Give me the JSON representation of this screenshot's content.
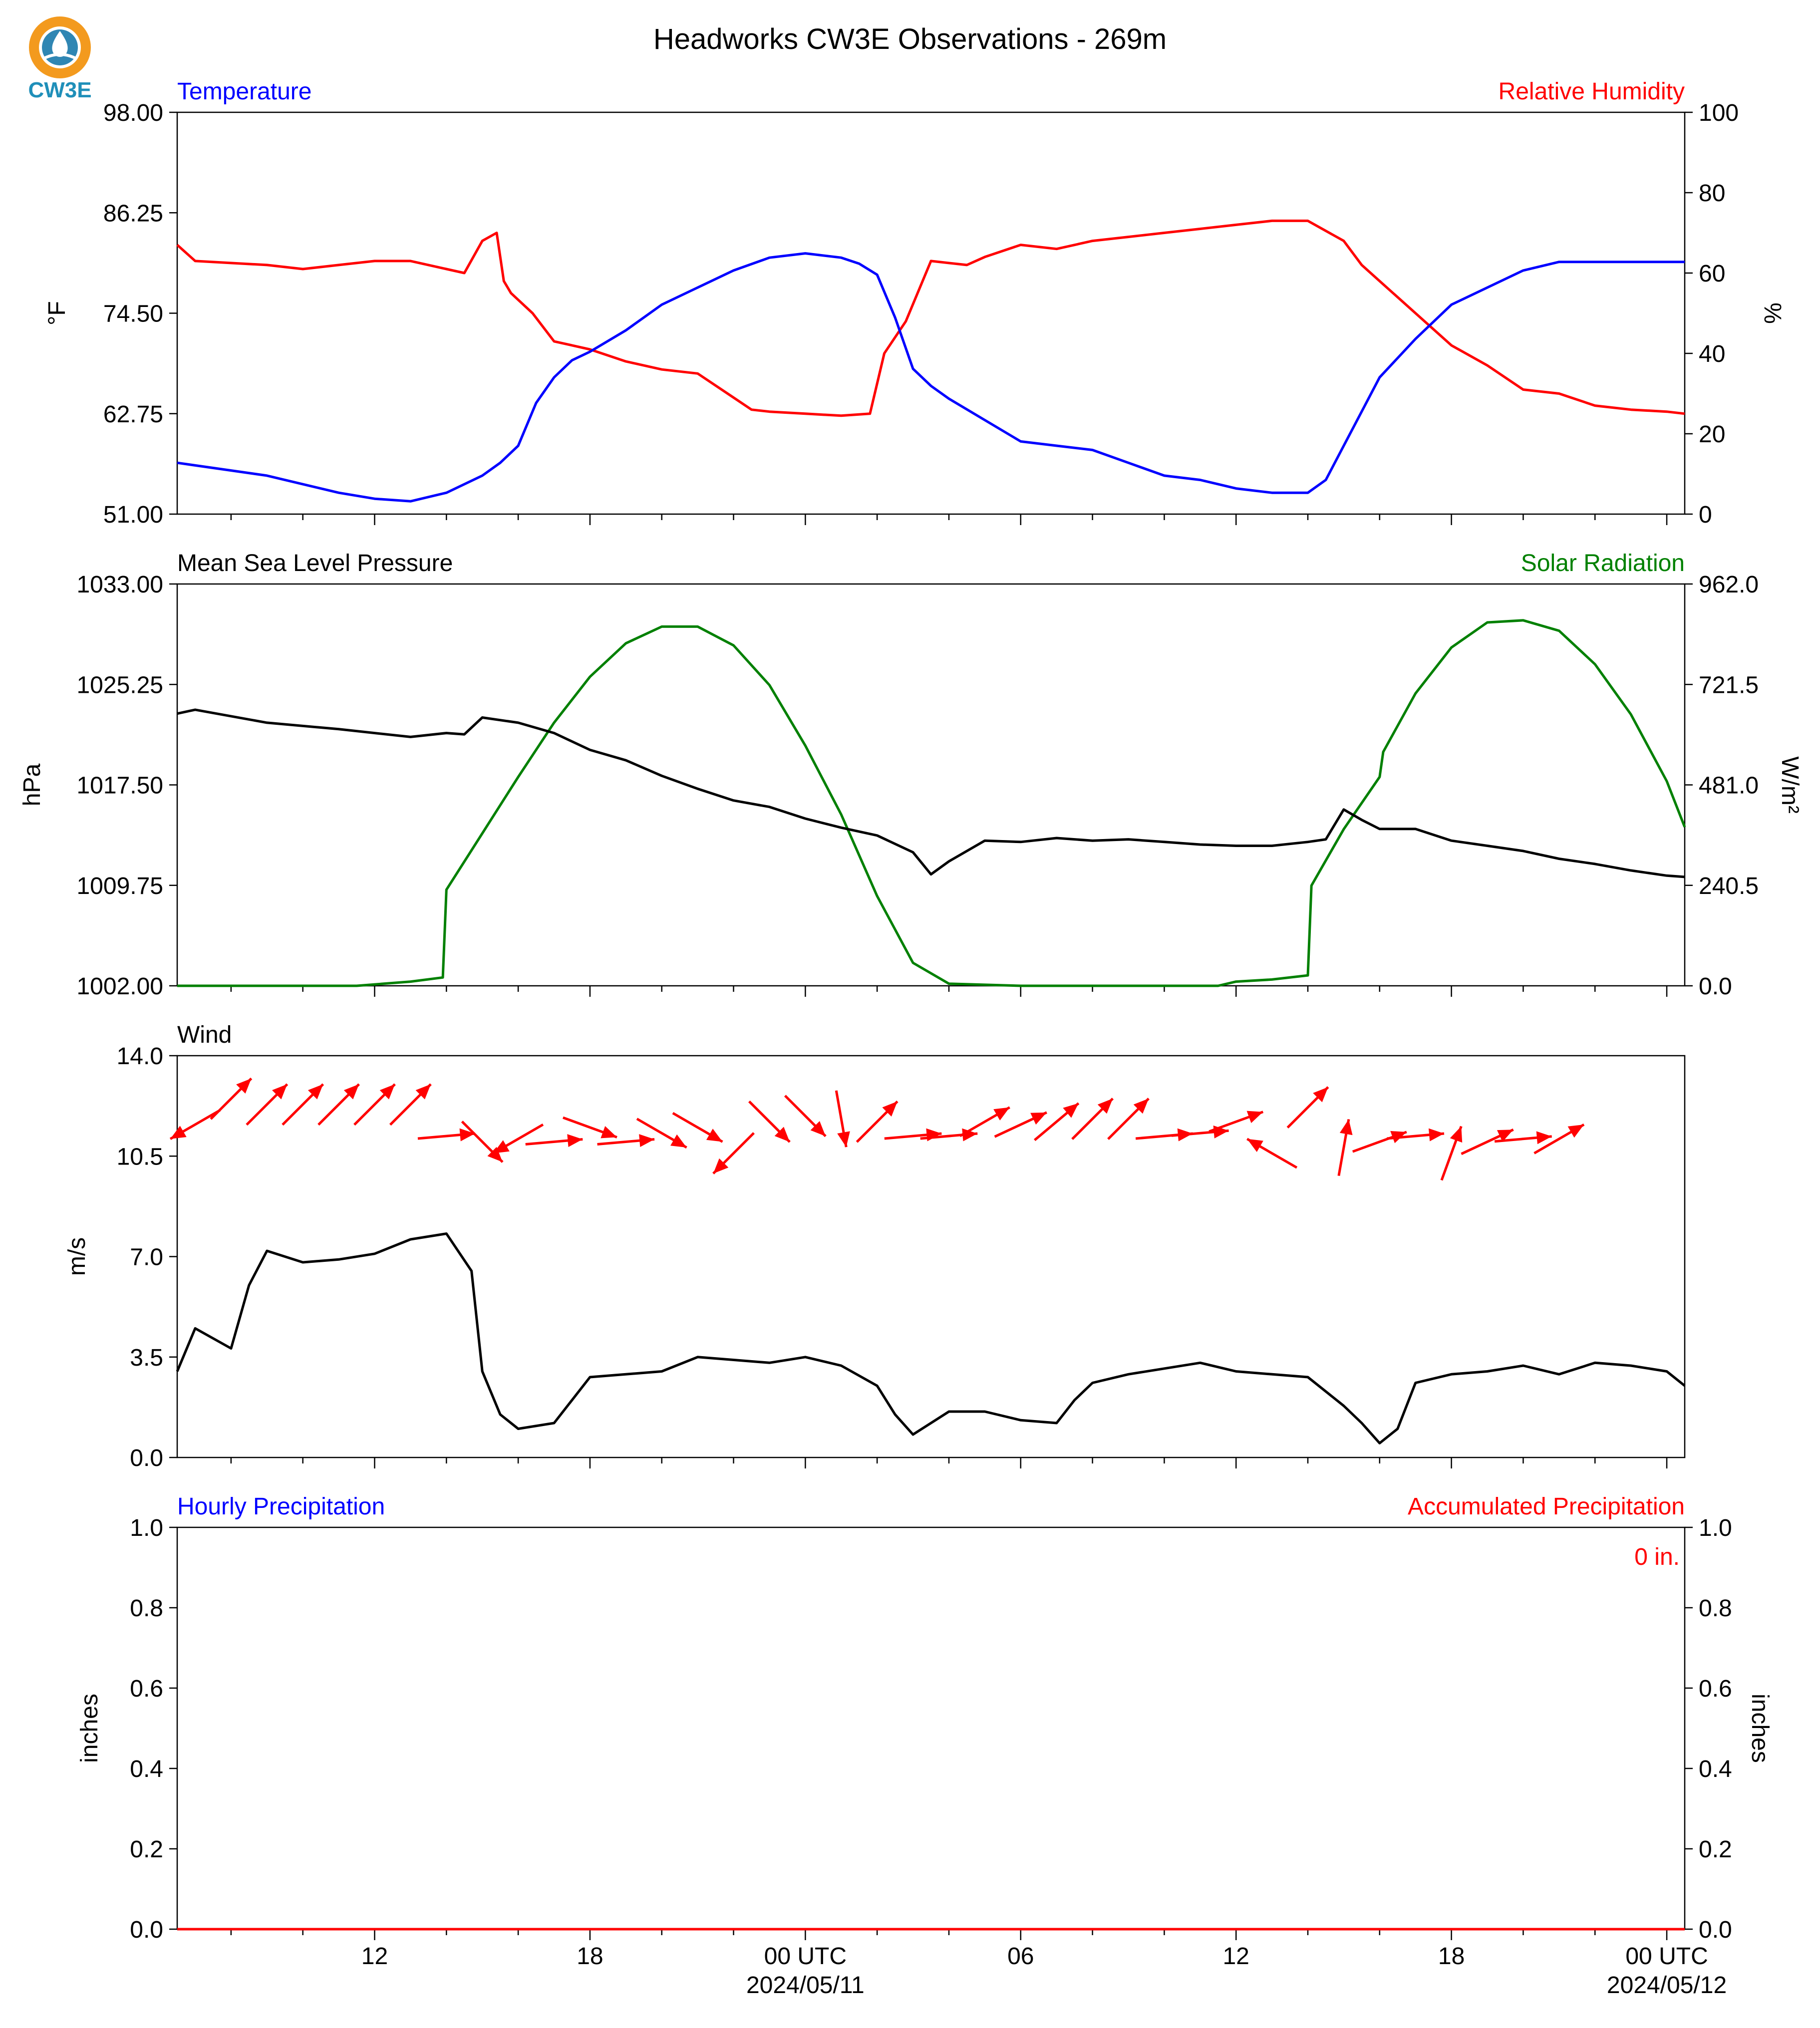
{
  "title": "Headworks CW3E Observations - 269m",
  "logo": {
    "text": "CW3E",
    "colors": {
      "ring": "#f39a1e",
      "drop": "#2f86b3",
      "text": "#1f8fb9"
    }
  },
  "colors": {
    "temperature": "#0000ff",
    "humidity": "#ff0000",
    "pressure": "#000000",
    "solar": "#008000",
    "wind": "#000000",
    "wind_arrows": "#ff0000",
    "precip_hourly": "#0000ff",
    "precip_accum": "#ff0000"
  },
  "x_axis": {
    "range_hours": [
      -17.5,
      24.5
    ],
    "ticks": [
      {
        "h": -12,
        "label": "12"
      },
      {
        "h": -6,
        "label": "18"
      },
      {
        "h": 0,
        "label": "00 UTC",
        "date": "2024/05/11"
      },
      {
        "h": 6,
        "label": "06"
      },
      {
        "h": 12,
        "label": "12"
      },
      {
        "h": 18,
        "label": "18"
      },
      {
        "h": 24,
        "label": "00 UTC",
        "date": "2024/05/12"
      }
    ],
    "minor_every_hours": 2
  },
  "panels": {
    "temp_rh": {
      "left_title": "Temperature",
      "right_title": "Relative Humidity",
      "left_unit": "°F",
      "right_unit": "%"
    },
    "pressure_solar": {
      "left_title": "Mean Sea Level Pressure",
      "right_title": "Solar Radiation",
      "left_unit": "hPa",
      "right_unit": "W/m²"
    },
    "wind": {
      "left_title": "Wind",
      "left_unit": "m/s"
    },
    "precip": {
      "left_title": "Hourly Precipitation",
      "right_title": "Accumulated Precipitation",
      "left_unit": "inches",
      "right_unit": "inches",
      "accum_label": "0 in."
    }
  },
  "chart_data": [
    {
      "type": "line",
      "title": "Temperature",
      "ylabel": "°F",
      "ylim": [
        51.0,
        98.0
      ],
      "yticks": [
        "51.00",
        "62.75",
        "74.50",
        "86.25",
        "98.00"
      ],
      "series": [
        {
          "name": "Temperature",
          "x": [
            -17.5,
            -15,
            -13,
            -12,
            -11,
            -10,
            -9,
            -8.5,
            -8,
            -7.5,
            -7,
            -6.5,
            -6,
            -5,
            -4,
            -3,
            -2,
            -1,
            0,
            1,
            1.5,
            2,
            2.5,
            3,
            3.5,
            4,
            5,
            6,
            7,
            8,
            9,
            10,
            11,
            12,
            13,
            14,
            14.5,
            15,
            15.5,
            16,
            17,
            18,
            19,
            20,
            21,
            22,
            23,
            24,
            24.5
          ],
          "y": [
            57,
            55.5,
            53.5,
            52.8,
            52.5,
            53.5,
            55.5,
            57,
            59,
            64,
            67,
            69,
            70,
            72.5,
            75.5,
            77.5,
            79.5,
            81,
            81.5,
            81,
            80.3,
            79,
            74,
            68,
            66,
            64.5,
            62,
            59.5,
            59,
            58.5,
            57,
            55.5,
            55,
            54,
            53.5,
            53.5,
            55,
            59,
            63,
            67,
            71.5,
            75.5,
            77.5,
            79.5,
            80.5,
            80.5,
            80.5,
            80.5,
            80.5
          ]
        }
      ]
    },
    {
      "type": "line",
      "title": "Relative Humidity",
      "ylabel": "%",
      "ylim": [
        0,
        100
      ],
      "yticks": [
        "0",
        "20",
        "40",
        "60",
        "80",
        "100"
      ],
      "series": [
        {
          "name": "Relative Humidity",
          "x": [
            -17.5,
            -17,
            -15,
            -14,
            -13,
            -12,
            -11,
            -10,
            -9.5,
            -9,
            -8.6,
            -8.4,
            -8.2,
            -7.6,
            -7,
            -6.5,
            -6,
            -5,
            -4,
            -3,
            -2,
            -1.5,
            -1,
            0,
            1,
            1.8,
            2.2,
            2.8,
            3.5,
            4.5,
            5,
            6,
            7,
            8,
            9,
            10,
            11,
            12,
            13,
            14,
            15,
            15.5,
            16,
            17,
            18,
            19,
            20,
            21,
            22,
            23,
            24,
            24.5
          ],
          "y": [
            67,
            63,
            62,
            61,
            62,
            63,
            63,
            61,
            60,
            68,
            70,
            58,
            55,
            50,
            43,
            42,
            41,
            38,
            36,
            35,
            29,
            26,
            25.5,
            25,
            24.5,
            25,
            40,
            48,
            63,
            62,
            64,
            67,
            66,
            68,
            69,
            70,
            71,
            72,
            73,
            73,
            68,
            62,
            58,
            50,
            42,
            37,
            31,
            30,
            27,
            26,
            25.5,
            25
          ]
        }
      ]
    },
    {
      "type": "line",
      "title": "Mean Sea Level Pressure",
      "ylabel": "hPa",
      "ylim": [
        1002.0,
        1033.0
      ],
      "yticks": [
        "1002.00",
        "1009.75",
        "1017.50",
        "1025.25",
        "1033.00"
      ],
      "series": [
        {
          "name": "Mean Sea Level Pressure",
          "x": [
            -17.5,
            -17,
            -15,
            -13,
            -11,
            -10,
            -9.5,
            -9,
            -8,
            -7,
            -6,
            -5,
            -4,
            -3,
            -2,
            -1,
            0,
            1,
            2,
            3,
            3.5,
            4,
            5,
            6,
            7,
            8,
            9,
            10,
            11,
            12,
            13,
            14,
            14.5,
            15,
            15.5,
            16,
            17,
            18,
            19,
            20,
            21,
            22,
            23,
            24,
            24.5
          ],
          "y": [
            1023.0,
            1023.3,
            1022.3,
            1021.8,
            1021.2,
            1021.5,
            1021.4,
            1022.7,
            1022.3,
            1021.5,
            1020.2,
            1019.4,
            1018.2,
            1017.2,
            1016.3,
            1015.8,
            1014.9,
            1014.2,
            1013.6,
            1012.3,
            1010.6,
            1011.6,
            1013.2,
            1013.1,
            1013.4,
            1013.2,
            1013.3,
            1013.1,
            1012.9,
            1012.8,
            1012.8,
            1013.1,
            1013.3,
            1015.6,
            1014.8,
            1014.1,
            1014.1,
            1013.2,
            1012.8,
            1012.4,
            1011.8,
            1011.4,
            1010.9,
            1010.5,
            1010.4
          ]
        }
      ]
    },
    {
      "type": "line",
      "title": "Solar Radiation",
      "ylabel": "W/m²",
      "ylim": [
        0.0,
        962.0
      ],
      "yticks": [
        "0.0",
        "240.5",
        "481.0",
        "721.5",
        "962.0"
      ],
      "series": [
        {
          "name": "Solar Radiation",
          "x": [
            -17.5,
            -12.5,
            -11,
            -10.1,
            -10,
            -9,
            -8,
            -7,
            -6,
            -5,
            -4,
            -3,
            -2,
            -1,
            0,
            1,
            2,
            3,
            4,
            6,
            8,
            10,
            11.5,
            12,
            13,
            14,
            14.1,
            15,
            16,
            16.1,
            17,
            18,
            19,
            20,
            21,
            22,
            23,
            24,
            24.5
          ],
          "y": [
            0,
            0,
            10,
            20,
            230,
            365,
            500,
            630,
            740,
            820,
            860,
            860,
            815,
            720,
            575,
            410,
            215,
            55,
            5,
            0,
            0,
            0,
            0,
            10,
            15,
            25,
            240,
            375,
            500,
            560,
            700,
            810,
            870,
            875,
            850,
            770,
            650,
            490,
            380
          ]
        }
      ]
    },
    {
      "type": "line",
      "title": "Wind",
      "ylabel": "m/s",
      "ylim": [
        0.0,
        14.0
      ],
      "yticks": [
        "0.0",
        "3.5",
        "7.0",
        "10.5",
        "14.0"
      ],
      "series": [
        {
          "name": "Wind",
          "x": [
            -17.5,
            -17,
            -16,
            -15.5,
            -15,
            -14,
            -13,
            -12,
            -11,
            -10,
            -9.3,
            -9,
            -8.5,
            -8,
            -7,
            -6,
            -5,
            -4,
            -3,
            -2,
            -1,
            0,
            1,
            2,
            2.5,
            3,
            3.5,
            4,
            5,
            6,
            7,
            7.5,
            8,
            9,
            10,
            11,
            12,
            13,
            14,
            15,
            15.5,
            16,
            16.5,
            17,
            18,
            19,
            20,
            21,
            22,
            23,
            24,
            24.5
          ],
          "y": [
            3.0,
            4.5,
            3.8,
            6.0,
            7.2,
            6.8,
            6.9,
            7.1,
            7.6,
            7.8,
            6.5,
            3.0,
            1.5,
            1.0,
            1.2,
            2.8,
            2.9,
            3.0,
            3.5,
            3.4,
            3.3,
            3.5,
            3.2,
            2.5,
            1.5,
            0.8,
            1.2,
            1.6,
            1.6,
            1.3,
            1.2,
            2.0,
            2.6,
            2.9,
            3.1,
            3.3,
            3.0,
            2.9,
            2.8,
            1.8,
            1.2,
            0.5,
            1.0,
            2.6,
            2.9,
            3.0,
            3.2,
            2.9,
            3.3,
            3.2,
            3.0,
            2.5
          ]
        }
      ]
    },
    {
      "type": "line",
      "title": "Hourly Precipitation",
      "ylabel": "inches",
      "ylim": [
        0.0,
        1.0
      ],
      "yticks": [
        "0.0",
        "0.2",
        "0.4",
        "0.6",
        "0.8",
        "1.0"
      ],
      "series": [
        {
          "name": "Hourly Precipitation",
          "x": [
            -17.5,
            24.5
          ],
          "y": [
            0,
            0
          ]
        },
        {
          "name": "Accumulated Precipitation",
          "x": [
            -17.5,
            24.5
          ],
          "y": [
            0,
            0
          ]
        }
      ]
    }
  ],
  "wind_arrows": [
    [
      -17.0,
      11.6,
      300
    ],
    [
      -16.0,
      12.5,
      135
    ],
    [
      -15.0,
      12.3,
      135
    ],
    [
      -14.0,
      12.3,
      135
    ],
    [
      -13.0,
      12.3,
      135
    ],
    [
      -12.0,
      12.3,
      135
    ],
    [
      -11.0,
      12.3,
      135
    ],
    [
      -10.0,
      11.2,
      95
    ],
    [
      -9.0,
      11.0,
      45
    ],
    [
      -8.0,
      11.1,
      300
    ],
    [
      -7.0,
      11.0,
      95
    ],
    [
      -6.0,
      11.5,
      70
    ],
    [
      -5.0,
      11.0,
      95
    ],
    [
      -4.0,
      11.3,
      60
    ],
    [
      -3.0,
      11.5,
      60
    ],
    [
      -2.0,
      10.6,
      315
    ],
    [
      -1.0,
      11.7,
      45
    ],
    [
      0.0,
      11.9,
      45
    ],
    [
      1.0,
      11.8,
      10
    ],
    [
      2.0,
      11.7,
      135
    ],
    [
      3.0,
      11.2,
      95
    ],
    [
      4.0,
      11.2,
      95
    ],
    [
      5.0,
      11.7,
      120
    ],
    [
      6.0,
      11.6,
      115
    ],
    [
      7.0,
      11.7,
      130
    ],
    [
      8.0,
      11.8,
      135
    ],
    [
      9.0,
      11.8,
      135
    ],
    [
      10.0,
      11.2,
      95
    ],
    [
      11.0,
      11.3,
      95
    ],
    [
      12.0,
      11.7,
      110
    ],
    [
      13.0,
      10.6,
      240
    ],
    [
      14.0,
      12.2,
      135
    ],
    [
      15.0,
      10.8,
      170
    ],
    [
      16.0,
      11.0,
      110
    ],
    [
      17.0,
      11.2,
      95
    ],
    [
      18.0,
      10.6,
      160
    ],
    [
      19.0,
      11.0,
      115
    ],
    [
      20.0,
      11.1,
      95
    ],
    [
      21.0,
      11.1,
      120
    ]
  ]
}
